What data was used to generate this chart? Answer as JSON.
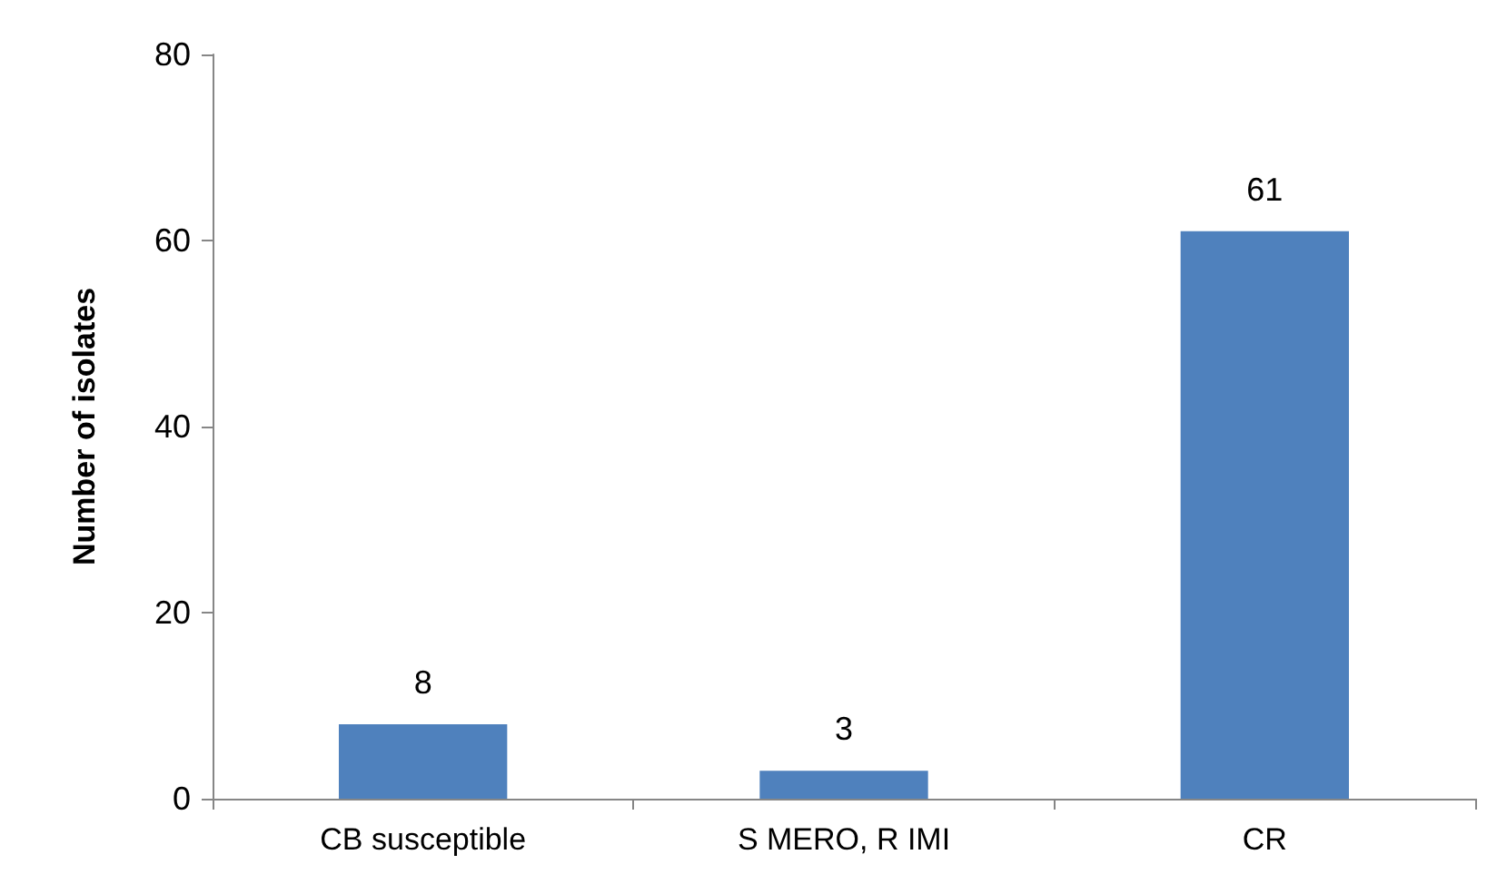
{
  "chart_data": {
    "type": "bar",
    "ylabel": "Number of isolates",
    "categories": [
      "CB susceptible",
      "S MERO, R IMI",
      "CR"
    ],
    "values": [
      8,
      3,
      61
    ],
    "color": "#4f81bd",
    "ylim": [
      0,
      80
    ],
    "yticks": [
      0,
      20,
      40,
      60,
      80
    ],
    "grid": false,
    "data_labels": true
  }
}
